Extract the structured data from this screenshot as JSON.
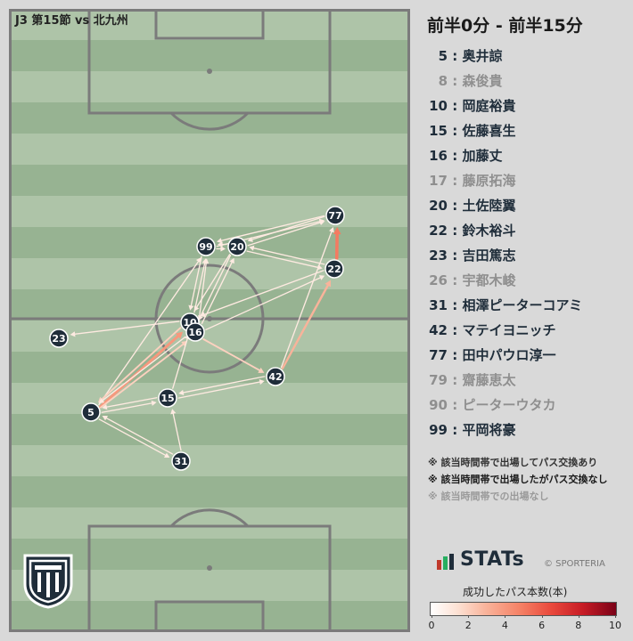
{
  "match": {
    "title": "J3 第15節 vs 北九州"
  },
  "period": {
    "label": "前半0分 - 前半15分"
  },
  "players": [
    {
      "num": "5",
      "name": "奥井諒",
      "active": true
    },
    {
      "num": "8",
      "name": "森俊貴",
      "active": false
    },
    {
      "num": "10",
      "name": "岡庭裕貴",
      "active": true
    },
    {
      "num": "15",
      "name": "佐藤喜生",
      "active": true
    },
    {
      "num": "16",
      "name": "加藤丈",
      "active": true
    },
    {
      "num": "17",
      "name": "藤原拓海",
      "active": false
    },
    {
      "num": "20",
      "name": "土佐陸翼",
      "active": true
    },
    {
      "num": "22",
      "name": "鈴木裕斗",
      "active": true
    },
    {
      "num": "23",
      "name": "吉田篤志",
      "active": true
    },
    {
      "num": "26",
      "name": "宇都木峻",
      "active": false
    },
    {
      "num": "31",
      "name": "相澤ピーターコアミ",
      "active": true
    },
    {
      "num": "42",
      "name": "マテイヨニッチ",
      "active": true
    },
    {
      "num": "77",
      "name": "田中パウロ淳一",
      "active": true
    },
    {
      "num": "79",
      "name": "齋藤恵太",
      "active": false
    },
    {
      "num": "90",
      "name": "ピーターウタカ",
      "active": false
    },
    {
      "num": "99",
      "name": "平岡将豪",
      "active": true
    }
  ],
  "notes": [
    "※ 該当時間帯で出場してパス交換あり",
    "※ 該当時間帯で出場したがパス交換なし",
    "※ 該当時間帯での出場なし"
  ],
  "brand": {
    "name": "STATs",
    "copyright": "© SPORTERIA"
  },
  "legend": {
    "title": "成功したパス本数(本)",
    "ticks": [
      "0",
      "2",
      "4",
      "6",
      "8",
      "10"
    ],
    "min": 0,
    "max": 10
  },
  "colors": {
    "grass_light": "#aec4a8",
    "grass_dark": "#97b392",
    "line": "#7b7b7b",
    "node": "#1f2d3a",
    "text_active": "#1f2d3a",
    "text_inactive": "#8f8f8f"
  },
  "network": {
    "nodes": [
      "5",
      "10",
      "15",
      "16",
      "20",
      "22",
      "23",
      "31",
      "42",
      "77",
      "99"
    ],
    "passes": [
      {
        "from": "5",
        "to": "10",
        "count": 4
      },
      {
        "from": "5",
        "to": "16",
        "count": 2
      },
      {
        "from": "5",
        "to": "15",
        "count": 1
      },
      {
        "from": "5",
        "to": "31",
        "count": 1
      },
      {
        "from": "5",
        "to": "99",
        "count": 1
      },
      {
        "from": "10",
        "to": "5",
        "count": 2
      },
      {
        "from": "16",
        "to": "5",
        "count": 1
      },
      {
        "from": "15",
        "to": "5",
        "count": 1
      },
      {
        "from": "31",
        "to": "5",
        "count": 1
      },
      {
        "from": "10",
        "to": "23",
        "count": 1
      },
      {
        "from": "10",
        "to": "99",
        "count": 1
      },
      {
        "from": "16",
        "to": "99",
        "count": 1
      },
      {
        "from": "16",
        "to": "20",
        "count": 1
      },
      {
        "from": "16",
        "to": "42",
        "count": 2
      },
      {
        "from": "16",
        "to": "22",
        "count": 1
      },
      {
        "from": "20",
        "to": "16",
        "count": 1
      },
      {
        "from": "20",
        "to": "99",
        "count": 1
      },
      {
        "from": "20",
        "to": "22",
        "count": 1
      },
      {
        "from": "20",
        "to": "77",
        "count": 1
      },
      {
        "from": "99",
        "to": "20",
        "count": 1
      },
      {
        "from": "99",
        "to": "77",
        "count": 1
      },
      {
        "from": "99",
        "to": "10",
        "count": 1
      },
      {
        "from": "22",
        "to": "77",
        "count": 5
      },
      {
        "from": "77",
        "to": "20",
        "count": 1
      },
      {
        "from": "77",
        "to": "99",
        "count": 1
      },
      {
        "from": "22",
        "to": "20",
        "count": 1
      },
      {
        "from": "42",
        "to": "22",
        "count": 3
      },
      {
        "from": "42",
        "to": "77",
        "count": 1
      },
      {
        "from": "42",
        "to": "15",
        "count": 1
      },
      {
        "from": "15",
        "to": "42",
        "count": 1
      },
      {
        "from": "15",
        "to": "10",
        "count": 1
      },
      {
        "from": "31",
        "to": "15",
        "count": 1
      },
      {
        "from": "22",
        "to": "10",
        "count": 1
      },
      {
        "from": "20",
        "to": "10",
        "count": 1
      }
    ]
  }
}
